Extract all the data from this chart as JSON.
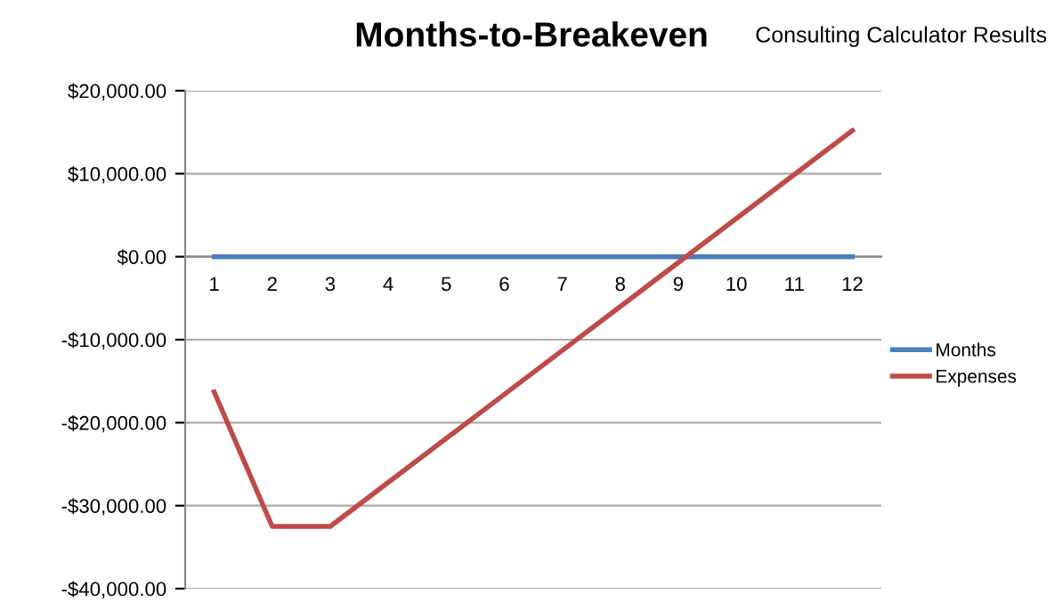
{
  "chart_data": {
    "type": "line",
    "title": "Months-to-Breakeven",
    "annotations": [
      "Consulting Calculator Results"
    ],
    "categories": [
      "1",
      "2",
      "3",
      "4",
      "5",
      "6",
      "7",
      "8",
      "9",
      "10",
      "11",
      "12"
    ],
    "series": [
      {
        "name": "Months",
        "color": "#4a7ebb",
        "values": [
          0,
          0,
          0,
          0,
          0,
          0,
          0,
          0,
          0,
          0,
          0,
          0
        ]
      },
      {
        "name": "Expenses",
        "color": "#be4b48",
        "values": [
          -16300,
          -32500,
          -32500,
          -27200,
          -21900,
          -16600,
          -11300,
          -6000,
          -700,
          4600,
          9900,
          15200
        ]
      }
    ],
    "ylim": [
      -40000,
      20000
    ],
    "yticks": [
      {
        "value": -40000,
        "label": "-$40,000.00"
      },
      {
        "value": -30000,
        "label": "-$30,000.00"
      },
      {
        "value": -20000,
        "label": "-$20,000.00"
      },
      {
        "value": -10000,
        "label": "-$10,000.00"
      },
      {
        "value": 0,
        "label": "$0.00"
      },
      {
        "value": 10000,
        "label": "$10,000.00"
      },
      {
        "value": 20000,
        "label": "$20,000.00"
      }
    ],
    "grid": "y",
    "legend": "right",
    "marker": "none",
    "line_style": "solid"
  }
}
